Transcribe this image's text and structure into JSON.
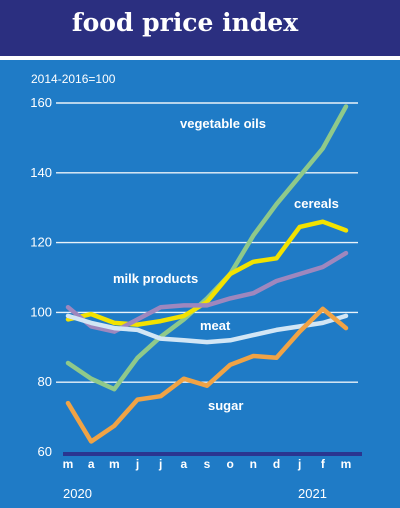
{
  "title": "food price index",
  "chart_data": {
    "type": "line",
    "unit_note": "2014-2016=100",
    "categories": [
      "m",
      "a",
      "m",
      "j",
      "j",
      "a",
      "s",
      "o",
      "n",
      "d",
      "j",
      "f",
      "m"
    ],
    "years": [
      "2020",
      "2021"
    ],
    "ylim": [
      60,
      160
    ],
    "yticks": [
      "60",
      "80",
      "100",
      "120",
      "140",
      "160"
    ],
    "grid": true,
    "series": [
      {
        "name": "vegetable oils",
        "color": "#8fc98a",
        "values": [
          85.5,
          81,
          78,
          87,
          93,
          98,
          104,
          111,
          122,
          131,
          139,
          147,
          159
        ]
      },
      {
        "name": "cereals",
        "color": "#f2e200",
        "values": [
          98,
          99.5,
          97,
          96.5,
          97.5,
          99,
          103,
          111,
          114.5,
          115.5,
          124.5,
          126,
          123.5
        ]
      },
      {
        "name": "milk products",
        "color": "#9e87be",
        "values": [
          101.5,
          96,
          94.5,
          98,
          101.5,
          102,
          102,
          104,
          105.5,
          109,
          111,
          113,
          117
        ]
      },
      {
        "name": "meat",
        "color": "#d2e6f5",
        "values": [
          99,
          97,
          95.5,
          95,
          92.5,
          92,
          91.5,
          92,
          93.5,
          95,
          96,
          97,
          99
        ]
      },
      {
        "name": "sugar",
        "color": "#f0a345",
        "values": [
          74,
          63,
          67.5,
          75,
          76,
          81,
          79,
          85,
          87.5,
          87,
          94.5,
          101,
          95.5
        ]
      }
    ]
  }
}
